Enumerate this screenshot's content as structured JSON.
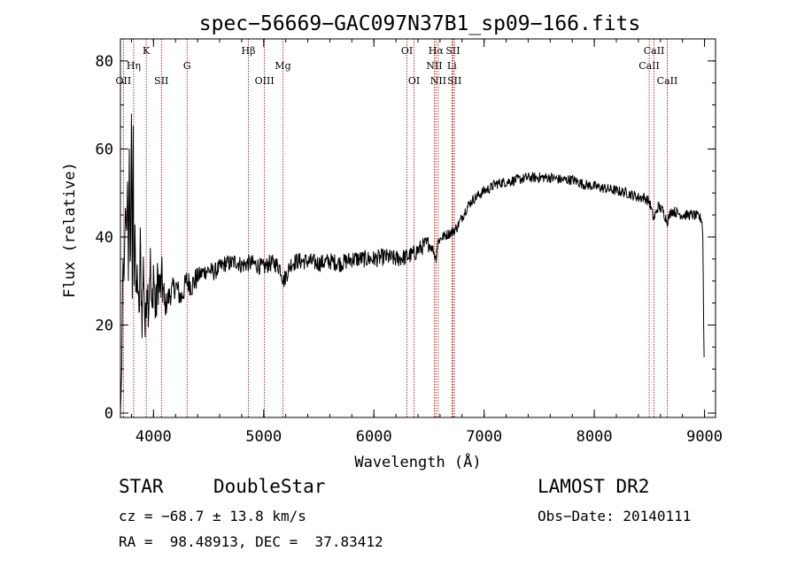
{
  "chart_data": {
    "type": "line",
    "title": "spec−56669−GAC097N37B1_sp09−166.fits",
    "xlabel": "Wavelength (Å)",
    "ylabel": "Flux (relative)",
    "xlim": [
      3700,
      9100
    ],
    "ylim": [
      -1,
      85
    ],
    "xticks": [
      4000,
      5000,
      6000,
      7000,
      8000,
      9000
    ],
    "yticks": [
      0,
      20,
      40,
      60,
      80
    ],
    "grid": false,
    "series": [
      {
        "anchors": [
          [
            3700,
            0
          ],
          [
            3712,
            10
          ],
          [
            3722,
            36
          ],
          [
            3732,
            30
          ],
          [
            3745,
            48
          ],
          [
            3755,
            40
          ],
          [
            3765,
            54
          ],
          [
            3772,
            30
          ],
          [
            3780,
            60
          ],
          [
            3790,
            28
          ],
          [
            3800,
            68
          ],
          [
            3808,
            26
          ],
          [
            3815,
            72
          ],
          [
            3822,
            25
          ],
          [
            3832,
            45
          ],
          [
            3842,
            23
          ],
          [
            3855,
            33
          ],
          [
            3868,
            19
          ],
          [
            3880,
            38
          ],
          [
            3895,
            21
          ],
          [
            3910,
            35
          ],
          [
            3925,
            17
          ],
          [
            3940,
            31
          ],
          [
            3955,
            24
          ],
          [
            3970,
            36
          ],
          [
            3985,
            20
          ],
          [
            4000,
            33
          ],
          [
            4020,
            22
          ],
          [
            4040,
            31
          ],
          [
            4060,
            28
          ],
          [
            4080,
            30
          ],
          [
            4100,
            24
          ],
          [
            4150,
            27
          ],
          [
            4200,
            29
          ],
          [
            4250,
            26
          ],
          [
            4300,
            30
          ],
          [
            4350,
            29
          ],
          [
            4400,
            31
          ],
          [
            4450,
            32
          ],
          [
            4500,
            32.5
          ],
          [
            4550,
            32
          ],
          [
            4600,
            33
          ],
          [
            4650,
            34
          ],
          [
            4700,
            34
          ],
          [
            4750,
            34.5
          ],
          [
            4800,
            33.5
          ],
          [
            4850,
            34
          ],
          [
            4900,
            34
          ],
          [
            4950,
            33.5
          ],
          [
            5000,
            33
          ],
          [
            5050,
            34
          ],
          [
            5100,
            34
          ],
          [
            5150,
            33
          ],
          [
            5180,
            30
          ],
          [
            5250,
            34
          ],
          [
            5300,
            34.5
          ],
          [
            5400,
            34.5
          ],
          [
            5500,
            34
          ],
          [
            5600,
            34.5
          ],
          [
            5700,
            34
          ],
          [
            5800,
            35
          ],
          [
            5900,
            35
          ],
          [
            6000,
            35
          ],
          [
            6100,
            35.5
          ],
          [
            6200,
            35
          ],
          [
            6300,
            35.5
          ],
          [
            6350,
            36
          ],
          [
            6400,
            37
          ],
          [
            6450,
            38
          ],
          [
            6500,
            38.5
          ],
          [
            6540,
            37
          ],
          [
            6563,
            35
          ],
          [
            6580,
            39
          ],
          [
            6620,
            40
          ],
          [
            6700,
            41
          ],
          [
            6750,
            42
          ],
          [
            6800,
            44.5
          ],
          [
            6850,
            47
          ],
          [
            6900,
            48.5
          ],
          [
            6950,
            49.5
          ],
          [
            7000,
            50.5
          ],
          [
            7050,
            51
          ],
          [
            7100,
            52
          ],
          [
            7200,
            52.5
          ],
          [
            7300,
            53
          ],
          [
            7400,
            53.5
          ],
          [
            7500,
            53.5
          ],
          [
            7600,
            53.5
          ],
          [
            7700,
            53
          ],
          [
            7800,
            53
          ],
          [
            7900,
            52
          ],
          [
            8000,
            51.5
          ],
          [
            8100,
            51
          ],
          [
            8200,
            50.5
          ],
          [
            8300,
            50
          ],
          [
            8400,
            49
          ],
          [
            8450,
            49
          ],
          [
            8500,
            48
          ],
          [
            8540,
            44
          ],
          [
            8580,
            47
          ],
          [
            8620,
            46
          ],
          [
            8662,
            43.5
          ],
          [
            8700,
            46
          ],
          [
            8800,
            45
          ],
          [
            8900,
            45
          ],
          [
            8950,
            44.5
          ],
          [
            8975,
            44
          ],
          [
            8985,
            40
          ],
          [
            8992,
            20
          ],
          [
            8998,
            9
          ]
        ]
      }
    ],
    "lines": [
      {
        "wave": 3727,
        "label": "OII",
        "row": 3
      },
      {
        "wave": 3820,
        "label": "Hη",
        "row": 2
      },
      {
        "wave": 3934,
        "label": "K",
        "row": 1
      },
      {
        "wave": 4072,
        "label": "SII",
        "row": 3
      },
      {
        "wave": 4305,
        "label": "G",
        "row": 2
      },
      {
        "wave": 4861,
        "label": "Hβ",
        "row": 1
      },
      {
        "wave": 5007,
        "label": "OIII",
        "row": 3
      },
      {
        "wave": 5175,
        "label": "Mg",
        "row": 2
      },
      {
        "wave": 6300,
        "label": "OI",
        "row": 1
      },
      {
        "wave": 6364,
        "label": "OI",
        "row": 3
      },
      {
        "wave": 6548,
        "label": "NII",
        "row": 2
      },
      {
        "wave": 6563,
        "label": "Hα",
        "row": 1
      },
      {
        "wave": 6584,
        "label": "NII",
        "row": 3
      },
      {
        "wave": 6717,
        "label": "SII",
        "row": 1
      },
      {
        "wave": 6731,
        "label": "SII",
        "row": 3
      },
      {
        "wave": 6708,
        "label": "Li",
        "row": 2
      },
      {
        "wave": 8498,
        "label": "CaII",
        "row": 2
      },
      {
        "wave": 8542,
        "label": "CaII",
        "row": 1
      },
      {
        "wave": 8662,
        "label": "CaII",
        "row": 3
      }
    ]
  },
  "info": {
    "class": "STAR",
    "subclass": "DoubleStar",
    "survey": "LAMOST DR2",
    "cz": "cz = −68.7 ± 13.8 km/s",
    "obs_date": "Obs−Date: 20140111",
    "coords": "RA =  98.48913, DEC =  37.83412"
  },
  "colors": {
    "line_marker": "#a00000",
    "spectrum": "#000000"
  }
}
